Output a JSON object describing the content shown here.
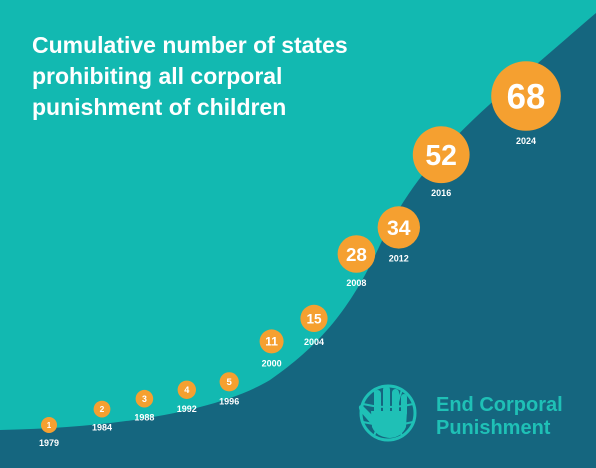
{
  "title_lines": [
    "Cumulative number of states",
    "prohibiting all corporal",
    "punishment of children"
  ],
  "logo": {
    "line1": "End Corporal",
    "line2": "Punishment"
  },
  "colors": {
    "background": "#12b9b1",
    "area": "#15667f",
    "marker": "#f5a030",
    "logo": "#1fc0b6"
  },
  "chart_data": {
    "type": "area",
    "title": "Cumulative number of states prohibiting all corporal punishment of children",
    "x": [
      "1979",
      "1984",
      "1988",
      "1992",
      "1996",
      "2000",
      "2004",
      "2008",
      "2012",
      "2016",
      "2024"
    ],
    "values": [
      1,
      2,
      3,
      4,
      5,
      11,
      15,
      28,
      34,
      52,
      68
    ],
    "data_labels": [
      "1",
      "2",
      "3",
      "4",
      "5",
      "11",
      "15",
      "28",
      "34",
      "52",
      "68"
    ],
    "grid": false,
    "legend": "none"
  }
}
